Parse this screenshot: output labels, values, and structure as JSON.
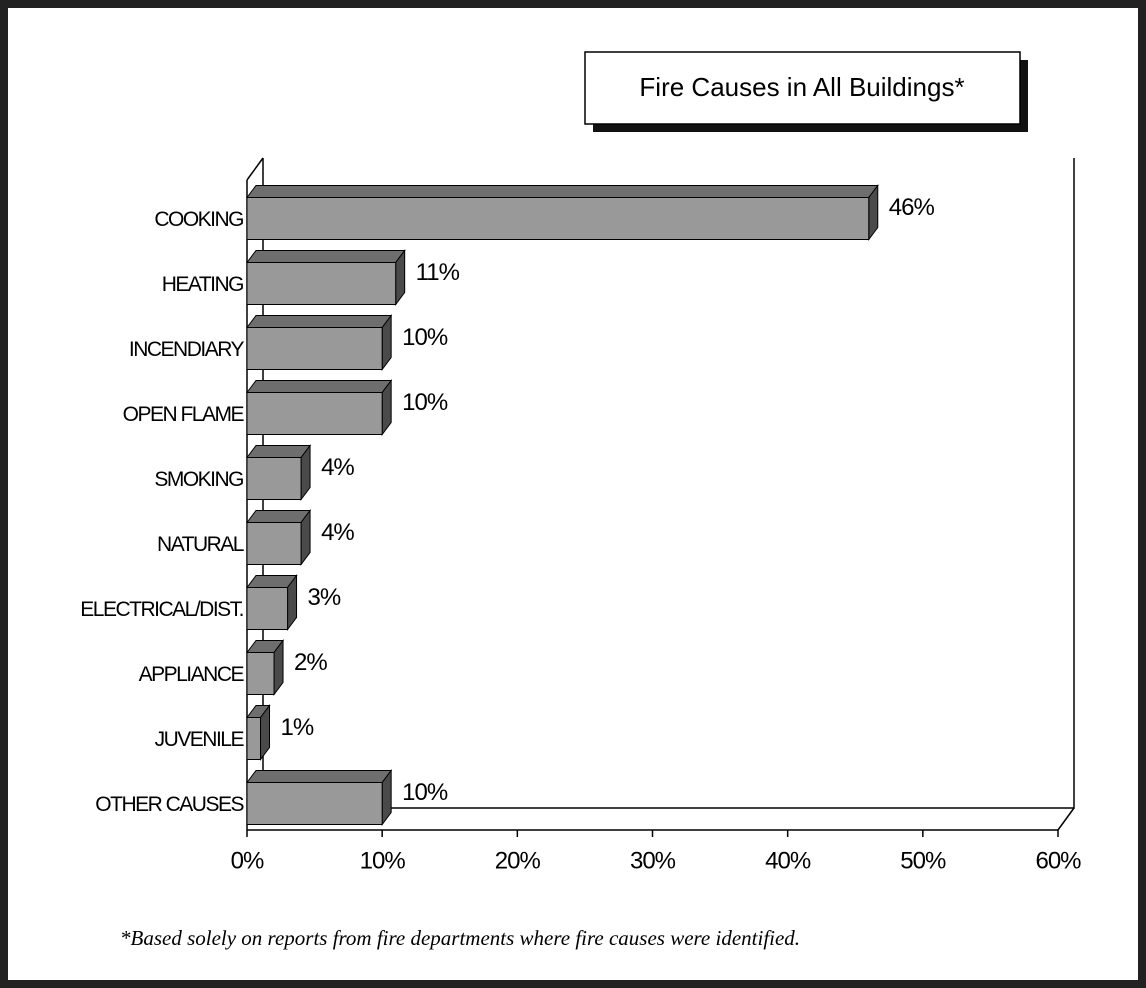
{
  "chart_data": {
    "type": "bar3d_horizontal",
    "title": "Fire Causes in All Buildings*",
    "footnote": "*Based solely on reports from fire departments where fire causes were identified.",
    "categories": [
      "COOKING",
      "HEATING",
      "INCENDIARY",
      "OPEN FLAME",
      "SMOKING",
      "NATURAL",
      "ELECTRICAL/DIST.",
      "APPLIANCE",
      "JUVENILE",
      "OTHER CAUSES"
    ],
    "values": [
      46,
      11,
      10,
      10,
      4,
      4,
      3,
      2,
      1,
      10
    ],
    "value_labels": [
      "46%",
      "11%",
      "10%",
      "10%",
      "4%",
      "4%",
      "3%",
      "2%",
      "1%",
      "10%"
    ],
    "color": "#999999",
    "xlim": [
      0,
      60
    ],
    "xticks": [
      {
        "value": 0,
        "label": "0%"
      },
      {
        "value": 10,
        "label": "10%"
      },
      {
        "value": 20,
        "label": "20%"
      },
      {
        "value": 30,
        "label": "30%"
      },
      {
        "value": 40,
        "label": "40%"
      },
      {
        "value": 50,
        "label": "50%"
      },
      {
        "value": 60,
        "label": "60%"
      }
    ],
    "grid": false
  }
}
